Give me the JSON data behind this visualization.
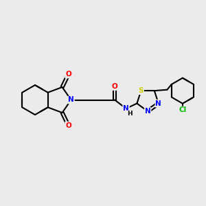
{
  "background_color": "#ebebeb",
  "bond_color": "#000000",
  "atom_colors": {
    "N": "#0000ff",
    "O": "#ff0000",
    "S": "#cccc00",
    "Cl": "#00bb00",
    "C": "#000000",
    "H": "#000000"
  },
  "figsize": [
    3.0,
    3.0
  ],
  "dpi": 100,
  "lw": 1.5,
  "fs": 7.5
}
